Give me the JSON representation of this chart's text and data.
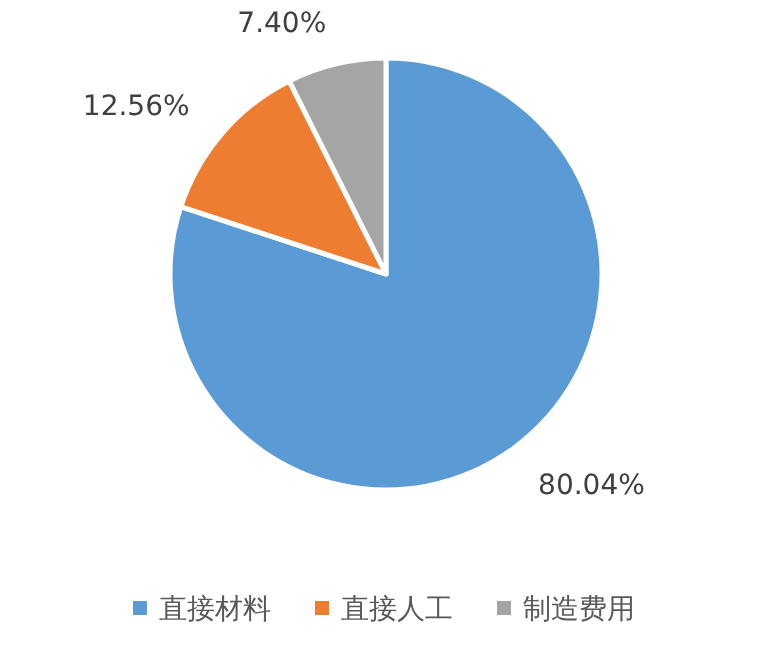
{
  "chart_data": {
    "type": "pie",
    "categories": [
      "直接材料",
      "直接人工",
      "制造费用"
    ],
    "values": [
      80.04,
      12.56,
      7.4
    ],
    "colors": [
      "#5b9bd5",
      "#ed7d31",
      "#a5a5a5"
    ],
    "value_labels": [
      "80.04%",
      "12.56%",
      "7.40%"
    ],
    "legend": "bottom"
  }
}
